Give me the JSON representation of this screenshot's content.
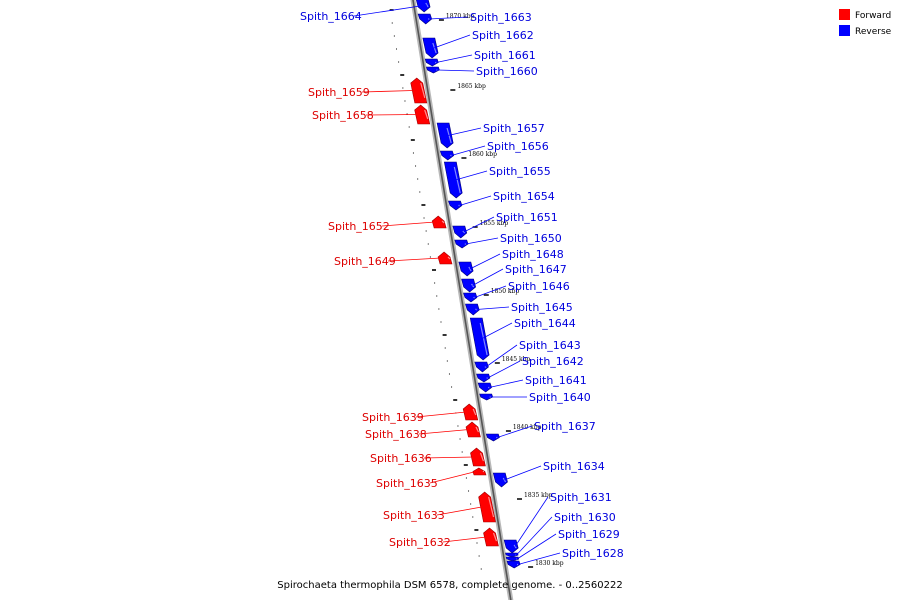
{
  "legend": {
    "forward": {
      "label": "Forward",
      "color": "#ff0000"
    },
    "reverse": {
      "label": "Reverse",
      "color": "#0000ff"
    }
  },
  "caption": "Spirochaeta thermophila DSM 6578, complete genome. - 0..2560222",
  "ticks": [
    {
      "label": "1870 kbp",
      "kbp": 1870
    },
    {
      "label": "1865 kbp",
      "kbp": 1865
    },
    {
      "label": "1860 kbp",
      "kbp": 1860
    },
    {
      "label": "1855 kbp",
      "kbp": 1855
    },
    {
      "label": "1850 kbp",
      "kbp": 1850
    },
    {
      "label": "1845 kbp",
      "kbp": 1845
    },
    {
      "label": "1840 kbp",
      "kbp": 1840
    },
    {
      "label": "1835 kbp",
      "kbp": 1835
    },
    {
      "label": "1830 kbp",
      "kbp": 1830
    }
  ],
  "genes": [
    {
      "name": "Spith_1664",
      "strand": "reverse"
    },
    {
      "name": "Spith_1663",
      "strand": "reverse"
    },
    {
      "name": "Spith_1662",
      "strand": "reverse"
    },
    {
      "name": "Spith_1661",
      "strand": "reverse"
    },
    {
      "name": "Spith_1660",
      "strand": "reverse"
    },
    {
      "name": "Spith_1659",
      "strand": "forward"
    },
    {
      "name": "Spith_1658",
      "strand": "forward"
    },
    {
      "name": "Spith_1657",
      "strand": "reverse"
    },
    {
      "name": "Spith_1656",
      "strand": "reverse"
    },
    {
      "name": "Spith_1655",
      "strand": "reverse"
    },
    {
      "name": "Spith_1654",
      "strand": "reverse"
    },
    {
      "name": "Spith_1652",
      "strand": "forward"
    },
    {
      "name": "Spith_1651",
      "strand": "reverse"
    },
    {
      "name": "Spith_1650",
      "strand": "reverse"
    },
    {
      "name": "Spith_1649",
      "strand": "forward"
    },
    {
      "name": "Spith_1648",
      "strand": "reverse"
    },
    {
      "name": "Spith_1647",
      "strand": "reverse"
    },
    {
      "name": "Spith_1646",
      "strand": "reverse"
    },
    {
      "name": "Spith_1645",
      "strand": "reverse"
    },
    {
      "name": "Spith_1644",
      "strand": "reverse"
    },
    {
      "name": "Spith_1643",
      "strand": "reverse"
    },
    {
      "name": "Spith_1642",
      "strand": "reverse"
    },
    {
      "name": "Spith_1641",
      "strand": "reverse"
    },
    {
      "name": "Spith_1640",
      "strand": "reverse"
    },
    {
      "name": "Spith_1639",
      "strand": "forward"
    },
    {
      "name": "Spith_1638",
      "strand": "forward"
    },
    {
      "name": "Spith_1637",
      "strand": "reverse"
    },
    {
      "name": "Spith_1636",
      "strand": "forward"
    },
    {
      "name": "Spith_1635",
      "strand": "forward"
    },
    {
      "name": "Spith_1634",
      "strand": "reverse"
    },
    {
      "name": "Spith_1633",
      "strand": "forward"
    },
    {
      "name": "Spith_1632",
      "strand": "forward"
    },
    {
      "name": "Spith_1631",
      "strand": "reverse"
    },
    {
      "name": "Spith_1630",
      "strand": "reverse"
    },
    {
      "name": "Spith_1629",
      "strand": "reverse"
    },
    {
      "name": "Spith_1628",
      "strand": "reverse"
    }
  ]
}
